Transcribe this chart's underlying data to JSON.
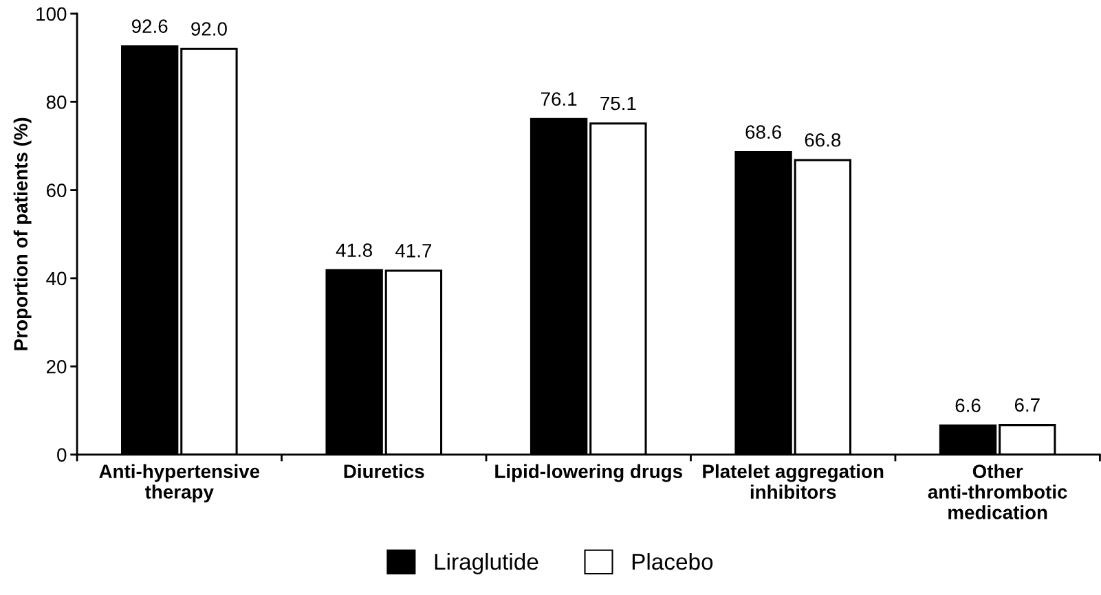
{
  "chart_data": {
    "type": "bar",
    "ylabel": "Proportion of patients (%)",
    "categories": [
      "Anti-hypertensive\ntherapy",
      "Diuretics",
      "Lipid-lowering drugs",
      "Platelet aggregation\ninhibitors",
      "Other\nanti-thrombotic\nmedication"
    ],
    "series": [
      {
        "name": "Liraglutide",
        "color": "#000000",
        "values": [
          92.6,
          41.8,
          76.1,
          68.6,
          6.6
        ],
        "value_labels": [
          "92.6",
          "41.8",
          "76.1",
          "68.6",
          "6.6"
        ]
      },
      {
        "name": "Placebo",
        "color": "#ffffff",
        "values": [
          92.0,
          41.7,
          75.1,
          66.8,
          6.7
        ],
        "value_labels": [
          "92.0",
          "41.7",
          "75.1",
          "66.8",
          "6.7"
        ]
      }
    ],
    "ylim": [
      0,
      100
    ],
    "yticks": [
      0,
      20,
      40,
      60,
      80,
      100
    ],
    "grid": false,
    "legend": "bottom"
  }
}
